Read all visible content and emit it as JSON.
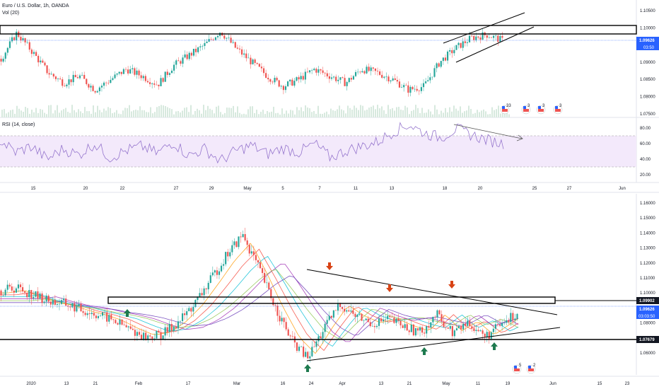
{
  "colors": {
    "up": "#26a69a",
    "down": "#ef5350",
    "vol": "#d7e9de",
    "rsi_line": "#9575cd",
    "rsi_band": "#f3e9fb",
    "price_line": "#2962ff",
    "zone_stroke": "#000000",
    "arrow_up": "#1e7a4f",
    "arrow_down": "#d84315"
  },
  "top_panel": {
    "title": "Euro / U.S. Dollar, 1h, OANDA",
    "vol_label": "Vol (20)",
    "price_axis": [
      "1.10500",
      "1.10000",
      "1.09500",
      "1.09000",
      "1.08500",
      "1.08000",
      "1.07500"
    ],
    "current_price": "1.09626",
    "countdown": "03:50",
    "date_axis": [
      "15",
      "20",
      "22",
      "27",
      "29",
      "May",
      "5",
      "7",
      "11",
      "13",
      "18",
      "20",
      "25",
      "27",
      "Jun"
    ],
    "events": [
      "33",
      "3",
      "3",
      "3",
      "3"
    ]
  },
  "rsi_panel": {
    "label": "RSI (14, close)",
    "axis": [
      "80.00",
      "60.00",
      "40.00",
      "20.00"
    ]
  },
  "bottom_panel": {
    "price_axis": [
      "1.16000",
      "1.15000",
      "1.14000",
      "1.13000",
      "1.12000",
      "1.11000",
      "1.10000",
      "1.09000",
      "1.08000",
      "1.07000",
      "1.06000"
    ],
    "zone_price": "1.09902",
    "current_price": "1.09626",
    "countdown": "03:03:50",
    "support_price": "1.07679",
    "date_axis": [
      "2020",
      "13",
      "21",
      "Feb",
      "17",
      "Mar",
      "16",
      "24",
      "Apr",
      "13",
      "21",
      "May",
      "11",
      "19",
      "Jun",
      "15",
      "23"
    ],
    "events": [
      "5",
      "2"
    ]
  },
  "chart_data": [
    {
      "type": "candlestick",
      "title": "Euro / U.S. Dollar, 1h, OANDA",
      "x": [
        "15",
        "20",
        "22",
        "27",
        "29",
        "May",
        "5",
        "7",
        "11",
        "13",
        "18",
        "20",
        "25",
        "27",
        "Jun"
      ],
      "ylim": [
        1.074,
        1.107
      ],
      "close_series": [
        1.091,
        1.0985,
        1.093,
        1.087,
        1.084,
        1.086,
        1.082,
        1.085,
        1.088,
        1.086,
        1.0835,
        1.089,
        1.092,
        1.095,
        1.099,
        1.094,
        1.09,
        1.086,
        1.083,
        1.085,
        1.088,
        1.086,
        1.084,
        1.088,
        1.087,
        1.085,
        1.082,
        1.083,
        1.09,
        1.094,
        1.097,
        1.098,
        1.0963
      ],
      "annotations": [
        "resistance zone 1.0985-1.1005",
        "rising channel",
        "current 1.09626"
      ]
    },
    {
      "type": "line",
      "title": "RSI (14, close)",
      "ylim": [
        15,
        85
      ],
      "values": [
        62,
        48,
        55,
        40,
        52,
        45,
        58,
        42,
        50,
        55,
        47,
        60,
        44,
        52,
        38,
        50,
        56,
        46,
        53,
        48,
        58,
        42,
        50,
        55,
        60,
        72,
        80,
        70,
        65,
        75,
        68,
        62,
        58
      ],
      "bands": [
        30,
        70
      ],
      "annotations": [
        "falling trend line from ~80"
      ]
    },
    {
      "type": "candlestick",
      "title": "",
      "x": [
        "2020",
        "13",
        "21",
        "Feb",
        "17",
        "Mar",
        "16",
        "24",
        "Apr",
        "13",
        "21",
        "May",
        "11",
        "19",
        "Jun",
        "15",
        "23"
      ],
      "ylim": [
        1.055,
        1.163
      ],
      "close_series": [
        1.111,
        1.113,
        1.108,
        1.104,
        1.102,
        1.098,
        1.095,
        1.091,
        1.085,
        1.08,
        1.082,
        1.09,
        1.102,
        1.118,
        1.135,
        1.148,
        1.125,
        1.1,
        1.078,
        1.066,
        1.085,
        1.102,
        1.094,
        1.089,
        1.092,
        1.087,
        1.083,
        1.095,
        1.083,
        1.09,
        1.08,
        1.088,
        1.0963
      ],
      "annotations": [
        "resistance zone ~1.099",
        "support 1.07679",
        "descending trend line",
        "ascending trend line",
        "3 down arrows at highs",
        "4 up arrows at lows"
      ]
    }
  ]
}
